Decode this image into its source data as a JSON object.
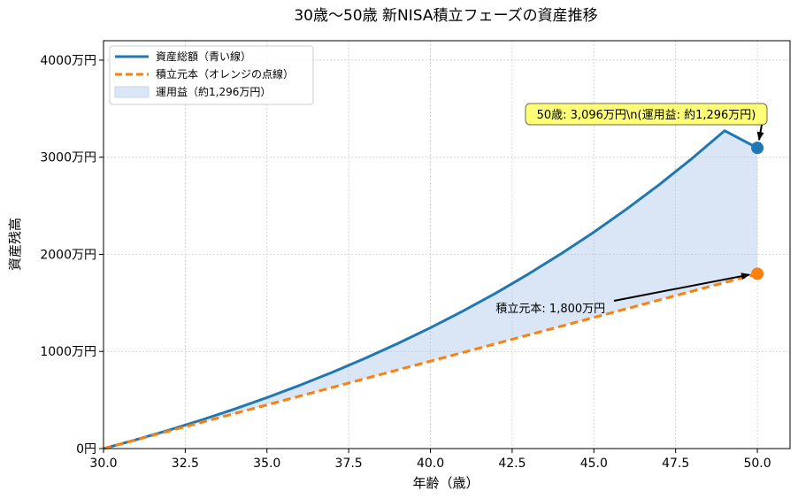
{
  "chart_data": {
    "type": "line",
    "title": "30歳〜50歳 新NISA積立フェーズの資産推移",
    "xlabel": "年齢（歳）",
    "ylabel": "資産残高",
    "xlim": [
      30,
      51
    ],
    "ylim": [
      0,
      4200
    ],
    "x_ticks": [
      30.0,
      32.5,
      35.0,
      37.5,
      40.0,
      42.5,
      45.0,
      47.5,
      50.0
    ],
    "x_tick_labels": [
      "30.0",
      "32.5",
      "35.0",
      "37.5",
      "40.0",
      "42.5",
      "45.0",
      "47.5",
      "50.0"
    ],
    "y_ticks": [
      0,
      1000,
      2000,
      3000,
      4000
    ],
    "y_tick_labels": [
      "0円",
      "1000万円",
      "2000万円",
      "3000万円",
      "4000万円"
    ],
    "grid": true,
    "legend_position": "top-left",
    "x": [
      30,
      31,
      32,
      33,
      34,
      35,
      36,
      37,
      38,
      39,
      40,
      41,
      42,
      43,
      44,
      45,
      46,
      47,
      48,
      49,
      50
    ],
    "series": [
      {
        "name": "資産総額（青い線）",
        "color": "#1f77b4",
        "style": "solid",
        "values": [
          0,
          92,
          190,
          295,
          406,
          525,
          651,
          786,
          929,
          1082,
          1244,
          1417,
          1601,
          1798,
          2007,
          2229,
          2466,
          2718,
          2987,
          3273,
          3096
        ]
      },
      {
        "name": "積立元本（オレンジの点線）",
        "color": "#ff7f0e",
        "style": "dashed",
        "values": [
          0,
          90,
          180,
          270,
          360,
          450,
          540,
          630,
          720,
          810,
          900,
          990,
          1080,
          1170,
          1260,
          1350,
          1440,
          1530,
          1620,
          1710,
          1800
        ]
      }
    ],
    "fill": {
      "name": "運用益（約1,296万円）",
      "color": "#aec7e8"
    },
    "annotations": [
      {
        "text": "50歳: 3,096万円\\n(運用益: 約1,296万円)",
        "x": 50,
        "y": 3096
      },
      {
        "text": "積立元本: 1,800万円",
        "x": 50,
        "y": 1800,
        "text_x": 42,
        "text_y": 1450
      }
    ]
  }
}
